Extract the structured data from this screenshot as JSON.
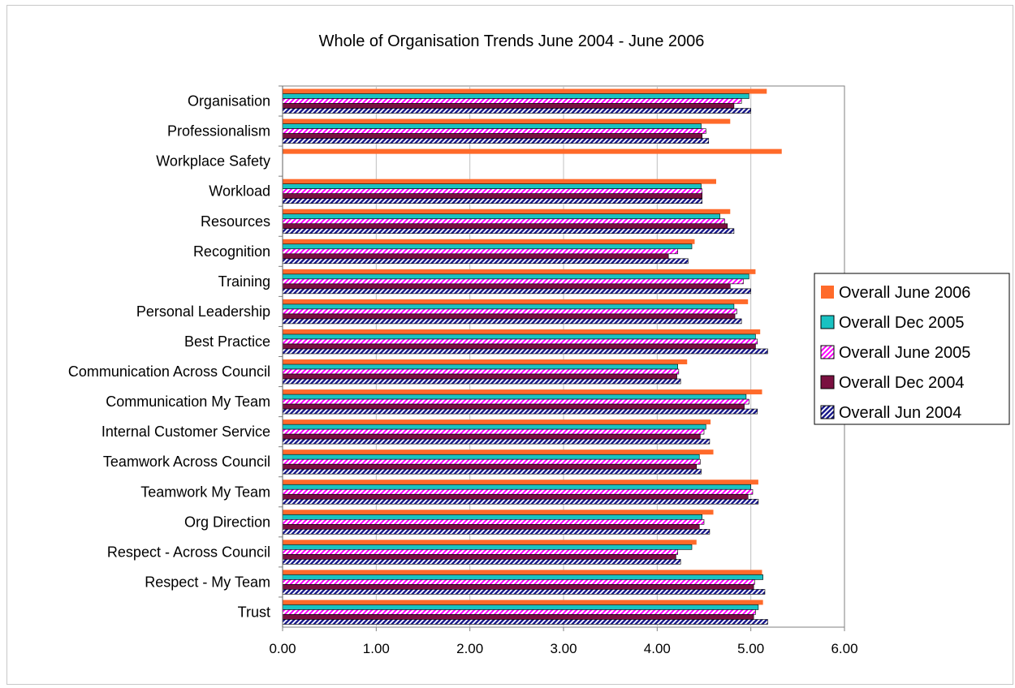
{
  "chart_data": {
    "type": "bar",
    "orientation": "horizontal",
    "title": "Whole of Organisation Trends June 2004 - June 2006",
    "xlabel": "",
    "ylabel": "",
    "xlim": [
      0,
      6
    ],
    "xticks": [
      0,
      1,
      2,
      3,
      4,
      5,
      6
    ],
    "xtick_labels": [
      "0.00",
      "1.00",
      "2.00",
      "3.00",
      "4.00",
      "5.00",
      "6.00"
    ],
    "grid": "vertical major gridlines",
    "legend_position": "right",
    "categories": [
      "Organisation",
      "Professionalism",
      "Workplace Safety",
      "Workload",
      "Resources",
      "Recognition",
      "Training",
      "Personal Leadership",
      "Best Practice",
      "Communication Across Council",
      "Communication My Team",
      "Internal Customer Service",
      "Teamwork Across Council",
      "Teamwork  My Team",
      "Org Direction",
      "Respect - Across Council",
      "Respect - My Team",
      "Trust"
    ],
    "series": [
      {
        "name": "Overall June 2006",
        "color": "#ff6a2a",
        "pattern": "solid",
        "values": [
          5.17,
          4.78,
          5.33,
          4.63,
          4.78,
          4.4,
          5.05,
          4.97,
          5.1,
          4.32,
          5.12,
          4.57,
          4.6,
          5.08,
          4.6,
          4.42,
          5.12,
          5.13
        ]
      },
      {
        "name": "Overall Dec 2005",
        "color": "#19c2c2",
        "pattern": "teal",
        "values": [
          4.98,
          4.47,
          null,
          4.47,
          4.67,
          4.37,
          4.98,
          4.82,
          5.05,
          4.22,
          4.95,
          4.52,
          4.45,
          5.0,
          4.48,
          4.37,
          5.13,
          5.08
        ]
      },
      {
        "name": "Overall June 2005",
        "color": "#ff00ff",
        "pattern": "magenta-diagonal",
        "values": [
          4.9,
          4.52,
          null,
          4.48,
          4.72,
          4.22,
          4.92,
          4.85,
          5.07,
          4.23,
          4.98,
          4.5,
          4.46,
          5.02,
          4.5,
          4.22,
          5.04,
          5.05
        ]
      },
      {
        "name": "Overall Dec 2004",
        "color": "#7a1040",
        "pattern": "maroon",
        "values": [
          4.82,
          4.48,
          null,
          4.48,
          4.75,
          4.12,
          4.78,
          4.83,
          5.05,
          4.21,
          4.93,
          4.46,
          4.42,
          4.97,
          4.45,
          4.2,
          5.03,
          5.03
        ]
      },
      {
        "name": "Overall Jun 2004",
        "color": "#1a1a8c",
        "pattern": "navy-diagonal",
        "values": [
          5.0,
          4.55,
          null,
          4.48,
          4.82,
          4.33,
          5.0,
          4.9,
          5.18,
          4.25,
          5.07,
          4.56,
          4.47,
          5.08,
          4.56,
          4.25,
          5.15,
          5.18
        ]
      }
    ]
  }
}
